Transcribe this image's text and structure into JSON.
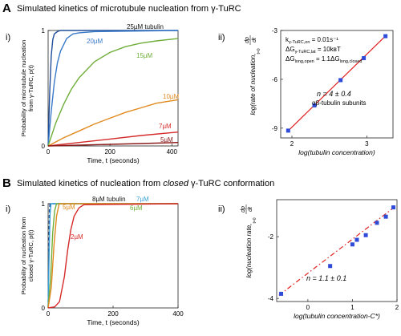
{
  "panels": {
    "A": {
      "letter": "A",
      "title": "Simulated kinetics of microtubule nucleation from γ-TuRC"
    },
    "B": {
      "letter": "B",
      "title_before": "Simulated kinetics of nucleation from ",
      "title_italic": "closed",
      "title_after": " γ-TuRC conformation"
    }
  },
  "chart_data": [
    {
      "id": "A-i",
      "label": "i)",
      "type": "line",
      "xlabel": "Time, t (seconds)",
      "ylabel": "Probability of microtubule nucleation from γ-TuRC, p(t)",
      "xlim": [
        0,
        420
      ],
      "ylim": [
        0,
        1
      ],
      "xticks": [
        0,
        200,
        400
      ],
      "yticks": [
        0,
        1
      ],
      "grid": false,
      "series": [
        {
          "name": "25µM tubulin",
          "color": "#1f4e9a",
          "x": [
            0,
            5,
            10,
            15,
            20,
            30,
            40,
            60,
            420
          ],
          "y": [
            0,
            0.45,
            0.78,
            0.92,
            0.97,
            0.99,
            1.0,
            1.0,
            1.0
          ]
        },
        {
          "name": "20µM",
          "color": "#3a7ac8",
          "x": [
            0,
            10,
            20,
            30,
            40,
            60,
            80,
            100,
            150,
            420
          ],
          "y": [
            0,
            0.3,
            0.55,
            0.72,
            0.82,
            0.93,
            0.97,
            0.98,
            0.99,
            1.0
          ]
        },
        {
          "name": "15µM",
          "color": "#6fae3a",
          "x": [
            0,
            25,
            50,
            75,
            100,
            150,
            200,
            250,
            300,
            350,
            420
          ],
          "y": [
            0,
            0.2,
            0.36,
            0.49,
            0.59,
            0.73,
            0.81,
            0.86,
            0.89,
            0.91,
            0.93
          ]
        },
        {
          "name": "10µM",
          "color": "#e08a1e",
          "x": [
            0,
            50,
            100,
            150,
            200,
            250,
            300,
            350,
            420
          ],
          "y": [
            0,
            0.07,
            0.13,
            0.19,
            0.24,
            0.29,
            0.33,
            0.37,
            0.4
          ]
        },
        {
          "name": "7µM",
          "color": "#d62a2a",
          "x": [
            0,
            100,
            200,
            300,
            420
          ],
          "y": [
            0,
            0.03,
            0.06,
            0.09,
            0.12
          ]
        },
        {
          "name": "5µM",
          "color": "#8b1a1a",
          "x": [
            0,
            100,
            200,
            300,
            420
          ],
          "y": [
            0,
            0.007,
            0.014,
            0.021,
            0.03
          ]
        }
      ]
    },
    {
      "id": "A-ii",
      "label": "ii)",
      "type": "scatter",
      "xlabel": "log(tubulin concentration)",
      "ylabel_main": "log(rate of nucleation,",
      "ylabel_deriv_num": "dp",
      "ylabel_deriv_den": "dt",
      "ylabel_eval": "t=0",
      "xlim": [
        1.85,
        3.35
      ],
      "ylim": [
        -9.6,
        -3
      ],
      "xticks": [
        2,
        3
      ],
      "yticks": [
        -3,
        -6,
        -9
      ],
      "grid": false,
      "points": {
        "x": [
          1.95,
          2.3,
          2.65,
          2.96,
          3.25
        ],
        "y": [
          -9.15,
          -7.6,
          -6.05,
          -4.7,
          -3.35
        ]
      },
      "fit": {
        "x": [
          1.93,
          3.27
        ],
        "y": [
          -9.25,
          -3.25
        ]
      },
      "marker_color": "#2f4bd8",
      "fit_color": "#e02020",
      "params": [
        {
          "main": "k",
          "sub": "γ-TuRC,on",
          "rest": " = 0.01s⁻¹"
        },
        {
          "main": "ΔG",
          "sub": "γ-TuRC,lat",
          "rest": " = 10kʙT"
        },
        {
          "main": "ΔG",
          "sub": "long,open",
          "rest": " = 1.1ΔG"
        }
      ],
      "annotation": "n = 4 ± 0.4",
      "annotation2": "αβ-tubulin subunits"
    },
    {
      "id": "B-i",
      "label": "i)",
      "type": "line",
      "xlabel": "Time, t (seconds)",
      "ylabel": "Probability of nucleation from closed γ-TuRC, p(t)",
      "xlim": [
        0,
        400
      ],
      "ylim": [
        0,
        1
      ],
      "xticks": [
        0,
        200,
        400
      ],
      "yticks": [
        0,
        1
      ],
      "grid": false,
      "series": [
        {
          "name": "8µM tubulin",
          "color": "#1f4e9a",
          "dash": "4,3",
          "x": [
            0,
            2,
            4,
            6,
            400
          ],
          "y": [
            0,
            0.6,
            0.95,
            1.0,
            1.0
          ]
        },
        {
          "name": "7µM",
          "color": "#3aa0d8",
          "dash": "",
          "x": [
            0,
            3,
            6,
            9,
            400
          ],
          "y": [
            0,
            0.5,
            0.9,
            1.0,
            1.0
          ]
        },
        {
          "name": "6µM",
          "color": "#6fae3a",
          "dash": "",
          "x": [
            0,
            8,
            14,
            20,
            26,
            400
          ],
          "y": [
            0,
            0.3,
            0.72,
            0.93,
            1.0,
            1.0
          ]
        },
        {
          "name": "5µM",
          "color": "#e08a1e",
          "dash": "",
          "x": [
            0,
            10,
            18,
            26,
            34,
            400
          ],
          "y": [
            0,
            0.2,
            0.6,
            0.88,
            1.0,
            1.0
          ]
        },
        {
          "name": "2µM",
          "color": "#d62a2a",
          "dash": "",
          "x": [
            0,
            20,
            35,
            50,
            60,
            70,
            80,
            95,
            110,
            400
          ],
          "y": [
            0,
            0.01,
            0.06,
            0.3,
            0.55,
            0.75,
            0.88,
            0.96,
            0.99,
            1.0
          ]
        }
      ]
    },
    {
      "id": "B-ii",
      "label": "ii)",
      "type": "scatter",
      "xlabel": "log(tubulin concentration-C*)",
      "ylabel_main": "log(nucleation rate,",
      "ylabel_deriv_num": "dp",
      "ylabel_deriv_den": "dt",
      "ylabel_eval": "t=0",
      "xlim": [
        -0.7,
        2.0
      ],
      "ylim": [
        -4.1,
        -0.8
      ],
      "xticks": [
        0,
        1,
        2
      ],
      "yticks": [
        -2,
        -4
      ],
      "grid": false,
      "points": {
        "x": [
          -0.6,
          0.5,
          1.0,
          1.1,
          1.3,
          1.55,
          1.75,
          1.92
        ],
        "y": [
          -3.85,
          -2.95,
          -2.25,
          -2.1,
          -1.95,
          -1.55,
          -1.35,
          -1.05
        ]
      },
      "fit": {
        "x": [
          -0.65,
          1.98
        ],
        "y": [
          -3.9,
          -1.0
        ]
      },
      "marker_color": "#2f4bd8",
      "fit_color": "#e02020",
      "fit_dash": "6,3,1.5,3",
      "annotation": "n = 1.1 ± 0.1"
    }
  ]
}
